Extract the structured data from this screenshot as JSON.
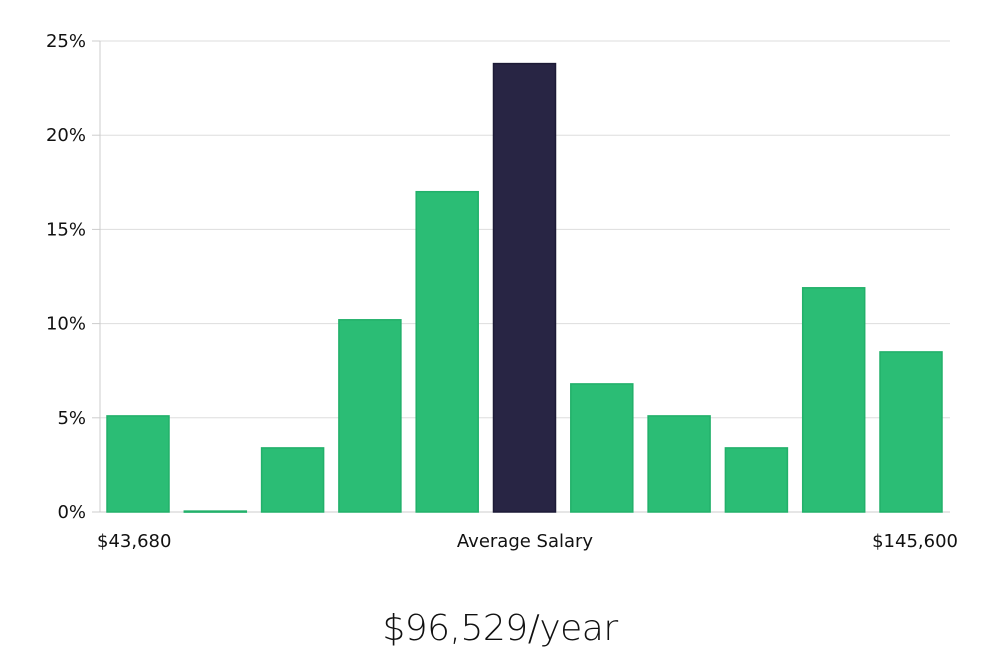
{
  "chart_data": {
    "type": "bar",
    "y_unit": "%",
    "ylim": [
      0,
      25
    ],
    "yticks": [
      0,
      5,
      10,
      15,
      20,
      25
    ],
    "grid": true,
    "values": [
      5.1,
      0.05,
      3.4,
      10.2,
      17.0,
      23.8,
      6.8,
      5.1,
      3.4,
      11.9,
      8.5
    ],
    "highlight_index": 5,
    "x_labels": {
      "min": "$43,680",
      "center": "Average Salary",
      "max": "$145,600"
    },
    "colors": {
      "bar": "#2bbd75",
      "highlight": "#282544",
      "grid": "#dddddd",
      "axis": "#cccccc"
    }
  },
  "summary": {
    "salary": "$96,529/year"
  }
}
